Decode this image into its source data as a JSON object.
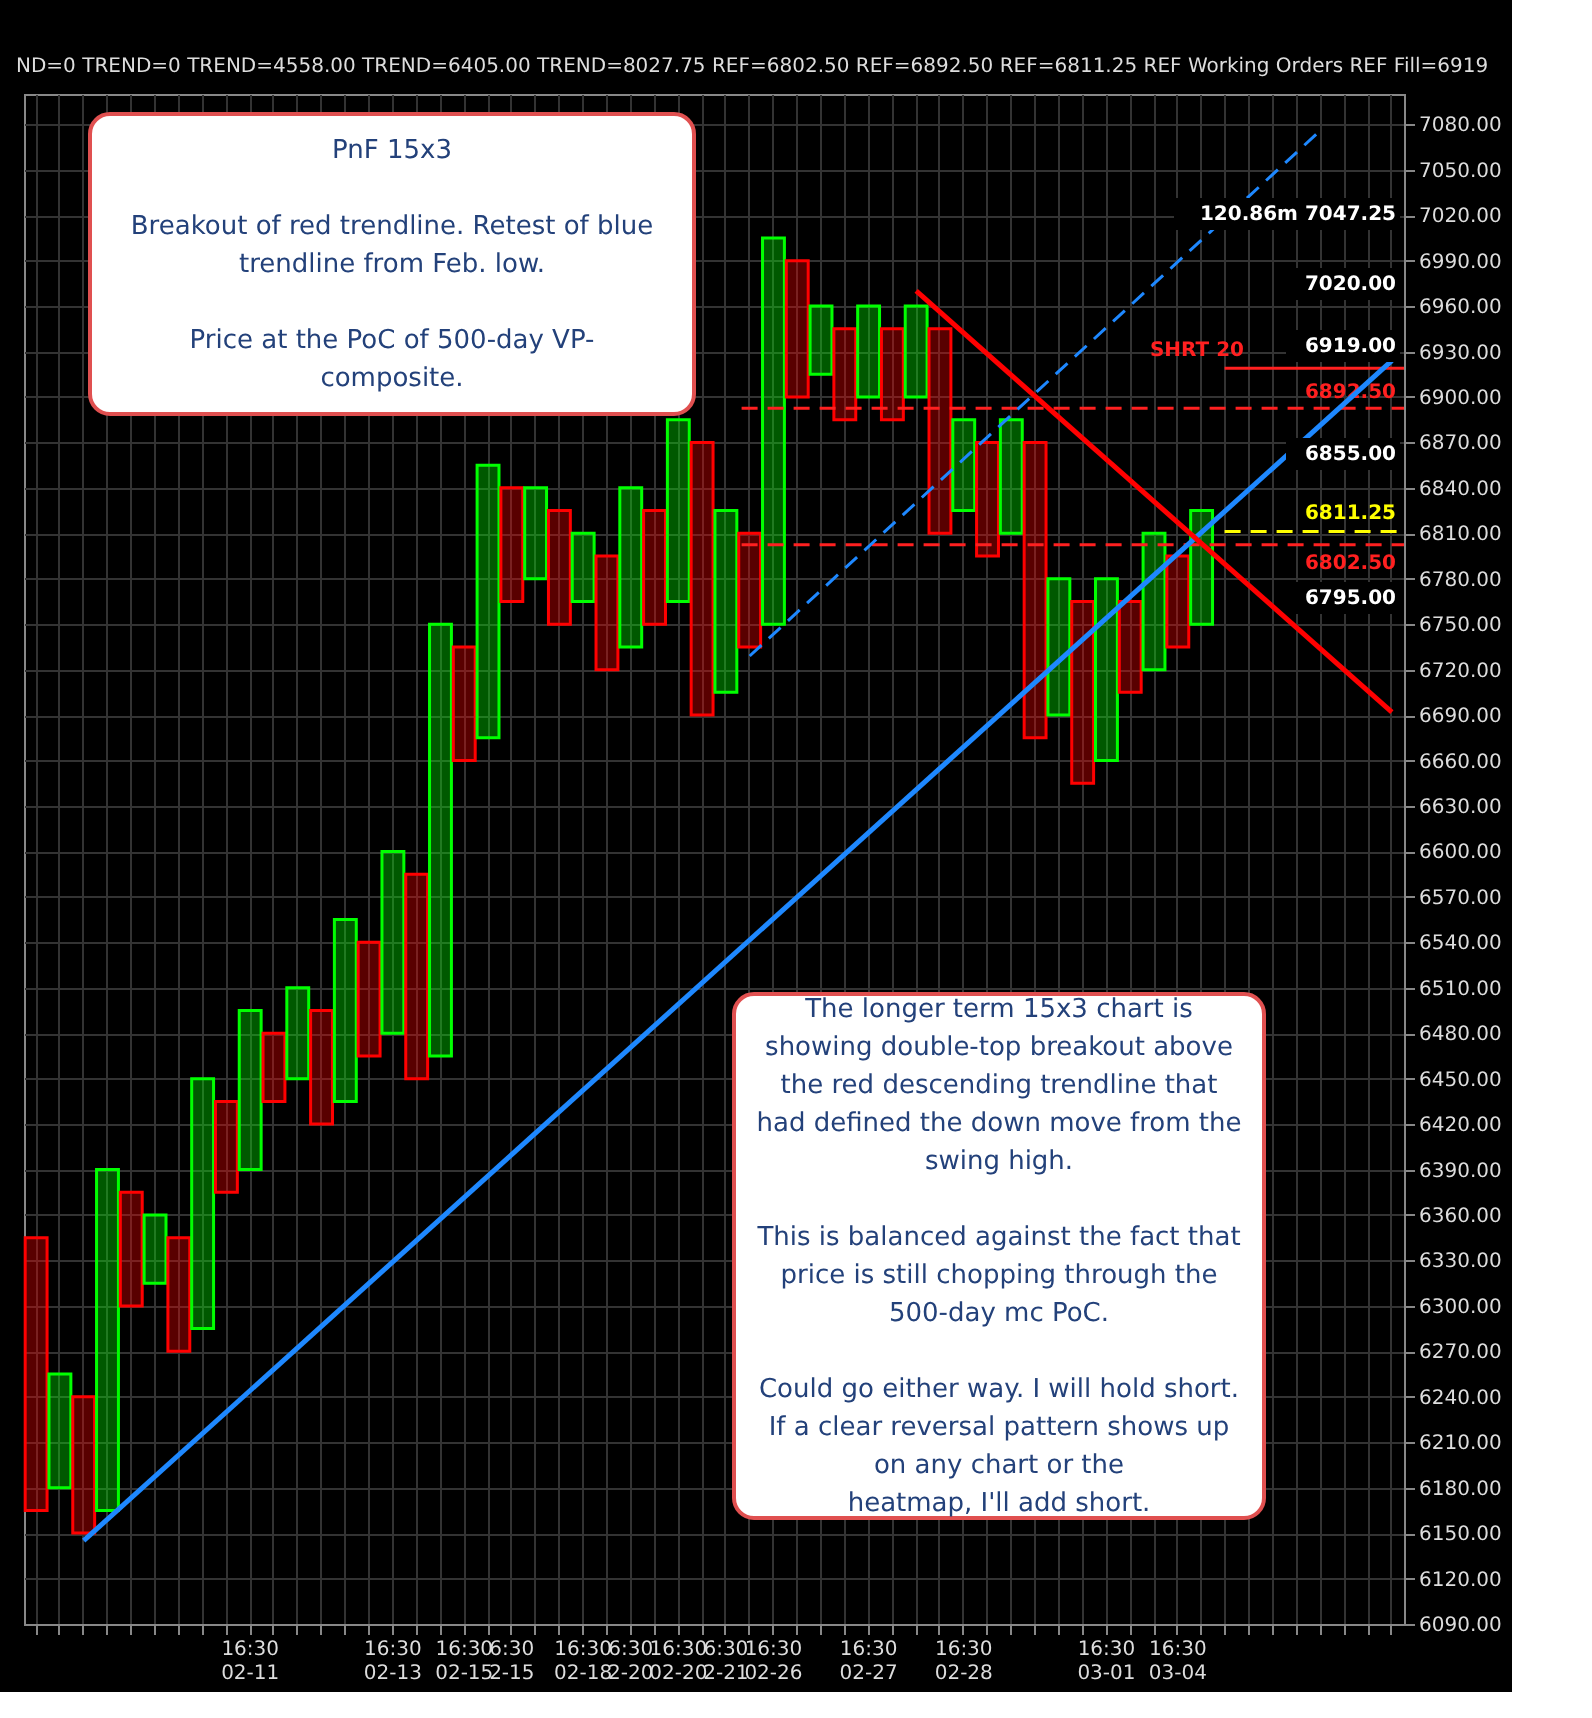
{
  "chart_data": {
    "type": "bar",
    "subtitle": "ND=0 TREND=0 TREND=4558.00 TREND=6405.00 TREND=8027.75 REF=6802.50 REF=6892.50 REF=6811.25 REF Working Orders REF Fill=6919",
    "categories": [
      null,
      null,
      null,
      null,
      null,
      null,
      null,
      null,
      null,
      "16:30 02-11",
      null,
      null,
      null,
      null,
      null,
      "16:30 02-13",
      null,
      null,
      "16:30 02-15",
      null,
      "6:30 2-15",
      null,
      null,
      "16:30 02-18",
      null,
      "6:30 2-20",
      null,
      "16:30 02-20",
      null,
      "6:30 2-21",
      null,
      "16:30 02-26",
      null,
      null,
      null,
      "16:30 02-27",
      null,
      null,
      null,
      "16:30 02-28",
      null,
      null,
      null,
      null,
      null,
      "16:30 03-01",
      null,
      null,
      "16:30 03-04",
      null,
      null,
      null,
      null,
      null,
      null,
      null,
      null,
      null
    ],
    "series": [
      {
        "base": [
          6165,
          6180,
          6150,
          6165,
          6300,
          6315,
          6270,
          6285,
          6375,
          6390,
          6435,
          6450,
          6420,
          6435,
          6465,
          6480,
          6450,
          6465,
          6660,
          6675,
          6765,
          6780,
          6750,
          6765,
          6720,
          6735,
          6750,
          6765,
          6690,
          6705,
          6735,
          6750,
          6900,
          6915,
          6885,
          6900,
          6885,
          6900,
          6810,
          6825,
          6795,
          6810,
          6675,
          6690,
          6645,
          6660,
          6705,
          6720,
          6735,
          6750,
          null,
          null,
          null,
          null,
          null,
          null,
          null,
          null
        ],
        "values": [
          180,
          75,
          90,
          225,
          75,
          45,
          75,
          165,
          60,
          105,
          45,
          60,
          75,
          120,
          75,
          120,
          135,
          285,
          75,
          180,
          75,
          60,
          75,
          45,
          75,
          105,
          75,
          120,
          180,
          120,
          75,
          255,
          90,
          45,
          60,
          60,
          60,
          60,
          135,
          60,
          75,
          75,
          195,
          90,
          120,
          120,
          60,
          90,
          60,
          75,
          null,
          null,
          null,
          null,
          null,
          null,
          null,
          null
        ],
        "colors": [
          "#ff0000",
          "#00ff00",
          "#ff0000",
          "#00ff00",
          "#ff0000",
          "#00ff00",
          "#ff0000",
          "#00ff00",
          "#ff0000",
          "#00ff00",
          "#ff0000",
          "#00ff00",
          "#ff0000",
          "#00ff00",
          "#ff0000",
          "#00ff00",
          "#ff0000",
          "#00ff00",
          "#ff0000",
          "#00ff00",
          "#ff0000",
          "#00ff00",
          "#ff0000",
          "#00ff00",
          "#ff0000",
          "#00ff00",
          "#ff0000",
          "#00ff00",
          "#ff0000",
          "#00ff00",
          "#ff0000",
          "#00ff00",
          "#ff0000",
          "#00ff00",
          "#ff0000",
          "#00ff00",
          "#ff0000",
          "#00ff00",
          "#ff0000",
          "#00ff00",
          "#ff0000",
          "#00ff00",
          "#ff0000",
          "#00ff00",
          "#ff0000",
          "#00ff00",
          "#ff0000",
          "#00ff00",
          "#ff0000",
          "#00ff00",
          "#ff0000",
          "#00ff00",
          "#ff0000",
          "#00ff00",
          "#ff0000",
          "#00ff00",
          "#ff0000",
          "#00ff00"
        ]
      },
      {
        "type": "line",
        "color": "#1e88ff",
        "line_style": "solid",
        "values": [
          null,
          null,
          6145,
          null,
          null,
          null,
          null,
          null,
          null,
          null,
          null,
          null,
          null,
          null,
          null,
          null,
          null,
          null,
          null,
          null,
          null,
          null,
          null,
          null,
          null,
          null,
          null,
          null,
          null,
          null,
          null,
          null,
          null,
          null,
          null,
          null,
          null,
          null,
          null,
          null,
          null,
          null,
          null,
          null,
          null,
          null,
          null,
          null,
          null,
          null,
          null,
          null,
          null,
          null,
          null,
          null,
          null,
          6924
        ]
      },
      {
        "type": "line",
        "color": "#1e88ff",
        "line_style": "dashed",
        "values": [
          null,
          null,
          null,
          null,
          null,
          null,
          null,
          null,
          null,
          null,
          null,
          null,
          null,
          null,
          null,
          null,
          null,
          null,
          null,
          null,
          null,
          null,
          null,
          null,
          null,
          null,
          null,
          null,
          null,
          null,
          6729,
          null,
          null,
          null,
          null,
          null,
          null,
          null,
          null,
          null,
          null,
          null,
          null,
          null,
          null,
          null,
          null,
          null,
          null,
          null,
          null,
          null,
          null,
          null,
          7076,
          null,
          null,
          null
        ]
      },
      {
        "type": "line",
        "color": "#ff0000",
        "line_style": "solid",
        "values": [
          null,
          null,
          null,
          null,
          null,
          null,
          null,
          null,
          null,
          null,
          null,
          null,
          null,
          null,
          null,
          null,
          null,
          null,
          null,
          null,
          null,
          null,
          null,
          null,
          null,
          null,
          null,
          null,
          null,
          null,
          null,
          null,
          null,
          null,
          null,
          null,
          null,
          6970,
          null,
          null,
          null,
          null,
          null,
          null,
          null,
          null,
          null,
          null,
          null,
          null,
          null,
          null,
          null,
          null,
          null,
          null,
          null,
          6692
        ]
      }
    ],
    "ylim": [
      6090,
      7100
    ],
    "yticks": [
      {
        "value": 6090,
        "label": "6090.00"
      },
      {
        "value": 6120,
        "label": "6120.00"
      },
      {
        "value": 6150,
        "label": "6150.00"
      },
      {
        "value": 6180,
        "label": "6180.00"
      },
      {
        "value": 6210,
        "label": "6210.00"
      },
      {
        "value": 6240,
        "label": "6240.00"
      },
      {
        "value": 6270,
        "label": "6270.00"
      },
      {
        "value": 6300,
        "label": "6300.00"
      },
      {
        "value": 6330,
        "label": "6330.00"
      },
      {
        "value": 6360,
        "label": "6360.00"
      },
      {
        "value": 6390,
        "label": "6390.00"
      },
      {
        "value": 6420,
        "label": "6420.00"
      },
      {
        "value": 6450,
        "label": "6450.00"
      },
      {
        "value": 6480,
        "label": "6480.00"
      },
      {
        "value": 6510,
        "label": "6510.00"
      },
      {
        "value": 6540,
        "label": "6540.00"
      },
      {
        "value": 6570,
        "label": "6570.00"
      },
      {
        "value": 6600,
        "label": "6600.00"
      },
      {
        "value": 6630,
        "label": "6630.00"
      },
      {
        "value": 6660,
        "label": "6660.00"
      },
      {
        "value": 6690,
        "label": "6690.00"
      },
      {
        "value": 6720,
        "label": "6720.00"
      },
      {
        "value": 6750,
        "label": "6750.00"
      },
      {
        "value": 6780,
        "label": "6780.00"
      },
      {
        "value": 6810,
        "label": "6810.00"
      },
      {
        "value": 6840,
        "label": "6840.00"
      },
      {
        "value": 6870,
        "label": "6870.00"
      },
      {
        "value": 6900,
        "label": "6900.00"
      },
      {
        "value": 6930,
        "label": "6930.00"
      },
      {
        "value": 6960,
        "label": "6960.00"
      },
      {
        "value": 6990,
        "label": "6990.00"
      },
      {
        "value": 7020,
        "label": "7020.00"
      },
      {
        "value": 7050,
        "label": "7050.00"
      },
      {
        "value": 7080,
        "label": "7080.00"
      }
    ],
    "grid": true,
    "ref_lines": [
      {
        "axis": "y",
        "value": 6892.5,
        "label": "6892.50",
        "color": "#ff2020",
        "line_style": "dashed"
      },
      {
        "axis": "y",
        "value": 6802.5,
        "label": "6802.50",
        "color": "#ff2020",
        "line_style": "dashed"
      },
      {
        "axis": "y",
        "value": 6811.25,
        "label": "6811.25",
        "color": "#ffff00",
        "line_style": "dashed"
      },
      {
        "axis": "y",
        "value": 6919,
        "label": "SHRT 20",
        "color": "#ff2020",
        "line_style": "solid"
      }
    ],
    "annotations": [
      "PnF 15x3\n\nBreakout of red trendline. Retest of blue\ntrendline from Feb. low.\n\nPrice at the PoC of 500-day VP-\ncomposite.",
      "The longer term 15x3 chart is\nshowing double-top breakout above\nthe red descending trendline that\nhad defined the down move from the\nswing high.\n\nThis is balanced against the fact that\nprice is still chopping through the\n500-day mc PoC.\n\nCould go either way. I will hold short.\nIf a clear reversal pattern shows up\non any chart or the\nheatmap, I'll add short.",
      "120.86m 7047.25",
      "7020.00",
      "6919.00",
      "6855.00",
      "6795.00"
    ]
  }
}
